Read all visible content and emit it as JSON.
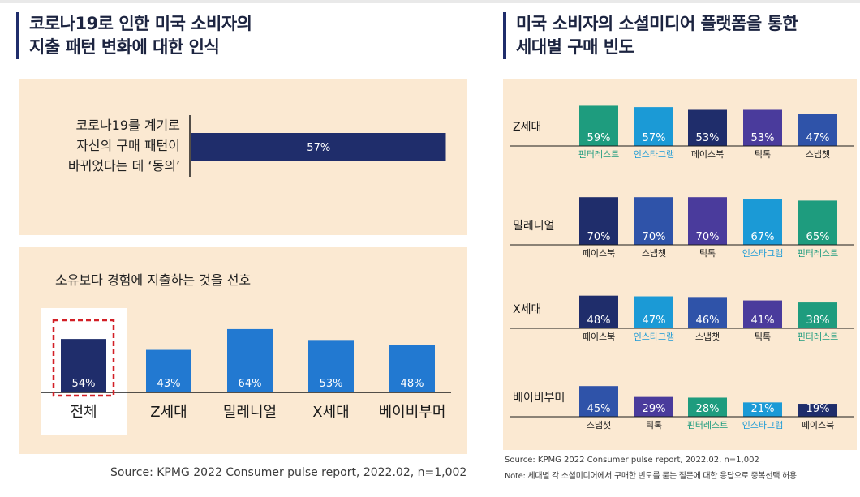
{
  "left": {
    "title_lines": [
      "코로나19로 인한 미국 소비자의",
      "지출 패턴 변화에 대한 인식"
    ],
    "source": "Source: KPMG 2022 Consumer pulse report, 2022.02, n=1,002"
  },
  "right": {
    "title_lines": [
      "미국 소비자의 소셜미디어 플랫폼을 통한",
      "세대별 구매 빈도"
    ],
    "source": "Source: KPMG 2022 Consumer pulse report, 2022.02, n=1,002",
    "note": "Note: 세대별 각 소셜미디어에서 구매한 빈도를 묻는 질문에 대한 응답으로 중복선택 허용"
  },
  "colors": {
    "navy": "#1f2d6b",
    "blue": "#2f53a9",
    "purple": "#4a3b9c",
    "sky": "#1b9ad6",
    "teal": "#1e9c7e",
    "bar_blue": "#2279d1",
    "highlight": "#d21f26",
    "panel": "#fbe9d2"
  },
  "chart_data": [
    {
      "type": "bar",
      "orientation": "horizontal",
      "categories": [
        "코로나19를 계기로 자신의 구매 패턴이 바뀌었다는 데 ‘동의’"
      ],
      "category_lines": [
        "코로나19를 계기로",
        "자신의 구매 패턴이",
        "바뀌었다는 데 ‘동의’"
      ],
      "values": [
        57
      ],
      "labels": [
        "57%"
      ],
      "xlim": [
        0,
        100
      ]
    },
    {
      "type": "bar",
      "title": "소유보다 경험에 지출하는 것을 선호",
      "categories": [
        "전체",
        "Z세대",
        "밀레니얼",
        "X세대",
        "베이비부머"
      ],
      "values": [
        54,
        43,
        64,
        53,
        48
      ],
      "labels": [
        "54%",
        "43%",
        "64%",
        "53%",
        "48%"
      ],
      "highlight": "전체",
      "ylim": [
        0,
        100
      ]
    },
    {
      "type": "bar",
      "groups": [
        {
          "name": "Z세대",
          "items": [
            {
              "platform": "핀터레스트",
              "value": 59,
              "label": "59%",
              "color": "teal"
            },
            {
              "platform": "인스타그램",
              "value": 57,
              "label": "57%",
              "color": "sky"
            },
            {
              "platform": "페이스북",
              "value": 53,
              "label": "53%",
              "color": "navy"
            },
            {
              "platform": "틱톡",
              "value": 53,
              "label": "53%",
              "color": "purple"
            },
            {
              "platform": "스냅챗",
              "value": 47,
              "label": "47%",
              "color": "blue"
            }
          ]
        },
        {
          "name": "밀레니얼",
          "items": [
            {
              "platform": "페이스북",
              "value": 70,
              "label": "70%",
              "color": "navy"
            },
            {
              "platform": "스냅챗",
              "value": 70,
              "label": "70%",
              "color": "blue"
            },
            {
              "platform": "틱톡",
              "value": 70,
              "label": "70%",
              "color": "purple"
            },
            {
              "platform": "인스타그램",
              "value": 67,
              "label": "67%",
              "color": "sky"
            },
            {
              "platform": "핀터레스트",
              "value": 65,
              "label": "65%",
              "color": "teal"
            }
          ]
        },
        {
          "name": "X세대",
          "items": [
            {
              "platform": "페이스북",
              "value": 48,
              "label": "48%",
              "color": "navy"
            },
            {
              "platform": "인스타그램",
              "value": 47,
              "label": "47%",
              "color": "sky"
            },
            {
              "platform": "스냅챗",
              "value": 46,
              "label": "46%",
              "color": "blue"
            },
            {
              "platform": "틱톡",
              "value": 41,
              "label": "41%",
              "color": "purple"
            },
            {
              "platform": "핀터레스트",
              "value": 38,
              "label": "38%",
              "color": "teal"
            }
          ]
        },
        {
          "name": "베이비부머",
          "items": [
            {
              "platform": "스냅챗",
              "value": 45,
              "label": "45%",
              "color": "blue"
            },
            {
              "platform": "틱톡",
              "value": 29,
              "label": "29%",
              "color": "purple"
            },
            {
              "platform": "핀터레스트",
              "value": 28,
              "label": "28%",
              "color": "teal"
            },
            {
              "platform": "인스타그램",
              "value": 21,
              "label": "21%",
              "color": "sky"
            },
            {
              "platform": "페이스북",
              "value": 19,
              "label": "19%",
              "color": "navy"
            }
          ]
        }
      ],
      "ylim": [
        0,
        100
      ]
    }
  ]
}
